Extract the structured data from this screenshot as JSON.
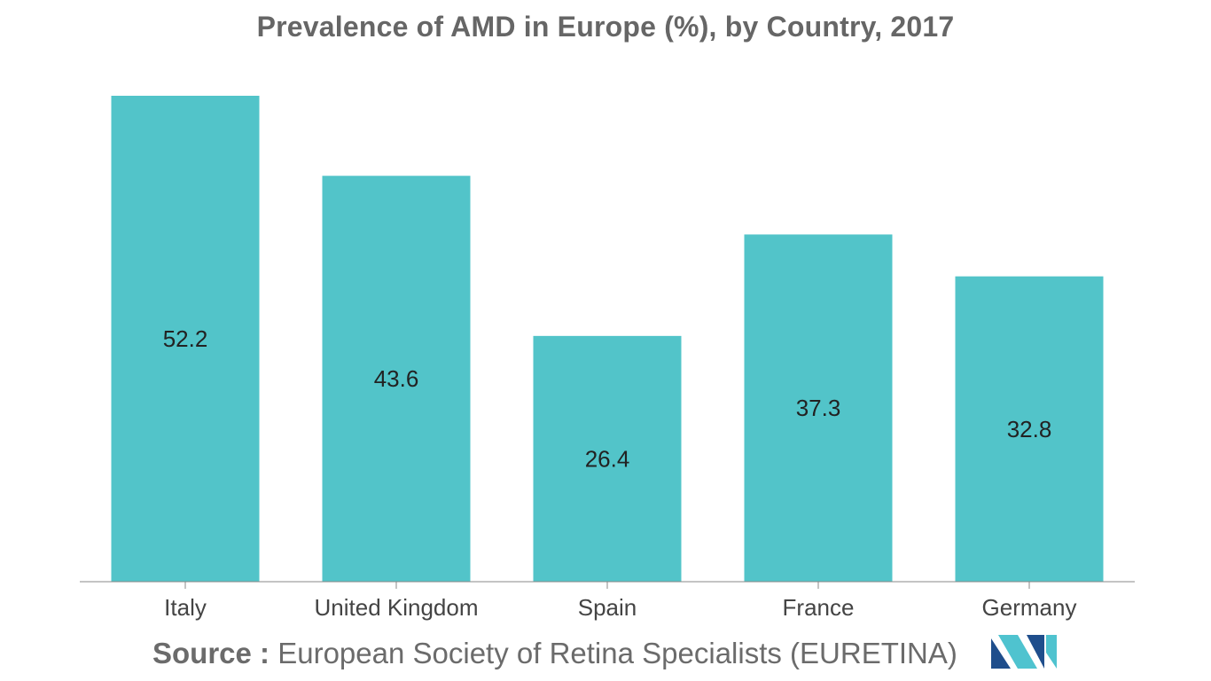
{
  "chart_data": {
    "type": "bar",
    "title": "Prevalence of AMD in Europe (%), by Country, 2017",
    "categories": [
      "Italy",
      "United Kingdom",
      "Spain",
      "France",
      "Germany"
    ],
    "values": [
      52.2,
      43.6,
      26.4,
      37.3,
      32.8
    ],
    "xlabel": "",
    "ylabel": "",
    "ylim": [
      0,
      52.2
    ],
    "grid": false,
    "bar_color": "#52c4c9",
    "axis_color": "#888888",
    "label_color": "#222222",
    "tick_label_color": "#444444"
  },
  "source": {
    "prefix": "Source :",
    "text": "European Society of Retina Specialists (EURETINA)"
  },
  "logo": {
    "icon": "mordor-logo-icon",
    "colors": [
      "#1f4e8c",
      "#4fc3cf"
    ]
  }
}
